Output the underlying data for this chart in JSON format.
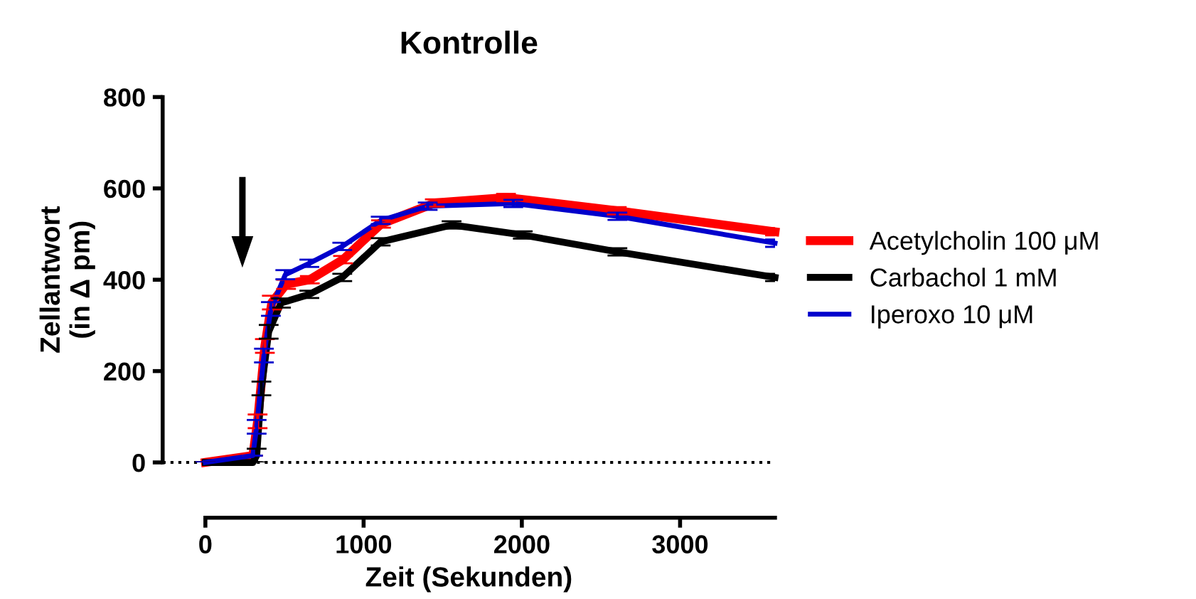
{
  "chart_data": {
    "type": "line",
    "title": "Kontrolle",
    "xlabel": "Zeit (Sekunden)",
    "ylabel": "Zellantwort\n(in Δ pm)",
    "xlim": [
      -270,
      3600
    ],
    "xticks": [
      0,
      1000,
      2000,
      3000
    ],
    "ylim": [
      0,
      800
    ],
    "yticks": [
      0,
      200,
      400,
      600,
      800
    ],
    "grid": false,
    "legend": "right",
    "marker": "none",
    "line_style": "solid",
    "ref_lines": [
      {
        "axis": "y",
        "value": 0,
        "color": "#000000",
        "line_style": "dotted"
      }
    ],
    "series": [
      {
        "name": "Acetylcholin 100 μM",
        "color": "#ff0000",
        "x": [
          0,
          300,
          330,
          376,
          420,
          510,
          660,
          870,
          1110,
          1450,
          1900,
          2600,
          3600
        ],
        "values": [
          0,
          15,
          90,
          255,
          350,
          390,
          400,
          444,
          522,
          568,
          580,
          551,
          505
        ],
        "errors": [
          null,
          null,
          15,
          15,
          15,
          10,
          8,
          8,
          8,
          8,
          8,
          8,
          8
        ]
      },
      {
        "name": "Carbachol 1 mM",
        "color": "#000000",
        "x": [
          0,
          300,
          324,
          354,
          400,
          478,
          657,
          865,
          1108,
          1556,
          2006,
          2604,
          3600
        ],
        "values": [
          0,
          0,
          15,
          162,
          286,
          349,
          368,
          405,
          483,
          520,
          498,
          461,
          405
        ],
        "errors": [
          null,
          null,
          15,
          15,
          15,
          10,
          8,
          8,
          8,
          8,
          8,
          8,
          8
        ]
      },
      {
        "name": "Iperoxo 10 μM",
        "color": "#0000cc",
        "x": [
          0,
          300,
          324,
          370,
          414,
          505,
          657,
          865,
          1108,
          1405,
          1946,
          2604,
          3600
        ],
        "values": [
          0,
          15,
          78,
          234,
          336,
          411,
          436,
          473,
          530,
          561,
          567,
          539,
          480
        ],
        "errors": [
          null,
          null,
          15,
          15,
          15,
          10,
          8,
          8,
          8,
          8,
          8,
          8,
          8
        ]
      }
    ]
  }
}
